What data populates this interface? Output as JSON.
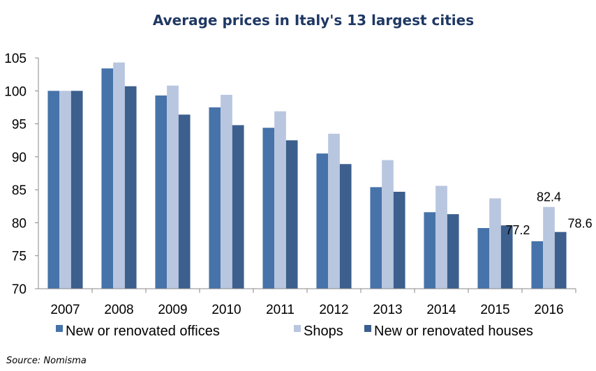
{
  "chart_data": {
    "type": "bar",
    "title": "Average prices in Italy's 13 largest cities",
    "xlabel": "",
    "ylabel": "",
    "ylim": [
      70,
      105
    ],
    "yticks": [
      70,
      75,
      80,
      85,
      90,
      95,
      100,
      105
    ],
    "grid": false,
    "legend_position": "bottom",
    "categories": [
      "2007",
      "2008",
      "2009",
      "2010",
      "2011",
      "2012",
      "2013",
      "2014",
      "2015",
      "2016"
    ],
    "series": [
      {
        "name": "New or renovated offices",
        "color": "#4673A9",
        "values": [
          100,
          103.4,
          99.3,
          97.5,
          94.4,
          90.5,
          85.4,
          81.6,
          79.2,
          77.2
        ]
      },
      {
        "name": "Shops",
        "color": "#B9C6DF",
        "values": [
          100,
          104.3,
          100.8,
          99.4,
          96.9,
          93.5,
          89.5,
          85.6,
          83.7,
          82.4
        ]
      },
      {
        "name": "New or renovated houses",
        "color": "#3C5F8D",
        "values": [
          100,
          100.7,
          96.4,
          94.8,
          92.5,
          88.9,
          84.7,
          81.3,
          79.6,
          78.6
        ]
      }
    ],
    "data_labels": [
      {
        "category": "2016",
        "series": 0,
        "text": "77.2"
      },
      {
        "category": "2016",
        "series": 1,
        "text": "82.4"
      },
      {
        "category": "2016",
        "series": 2,
        "text": "78.6"
      }
    ],
    "source": "Source: Nomisma"
  }
}
